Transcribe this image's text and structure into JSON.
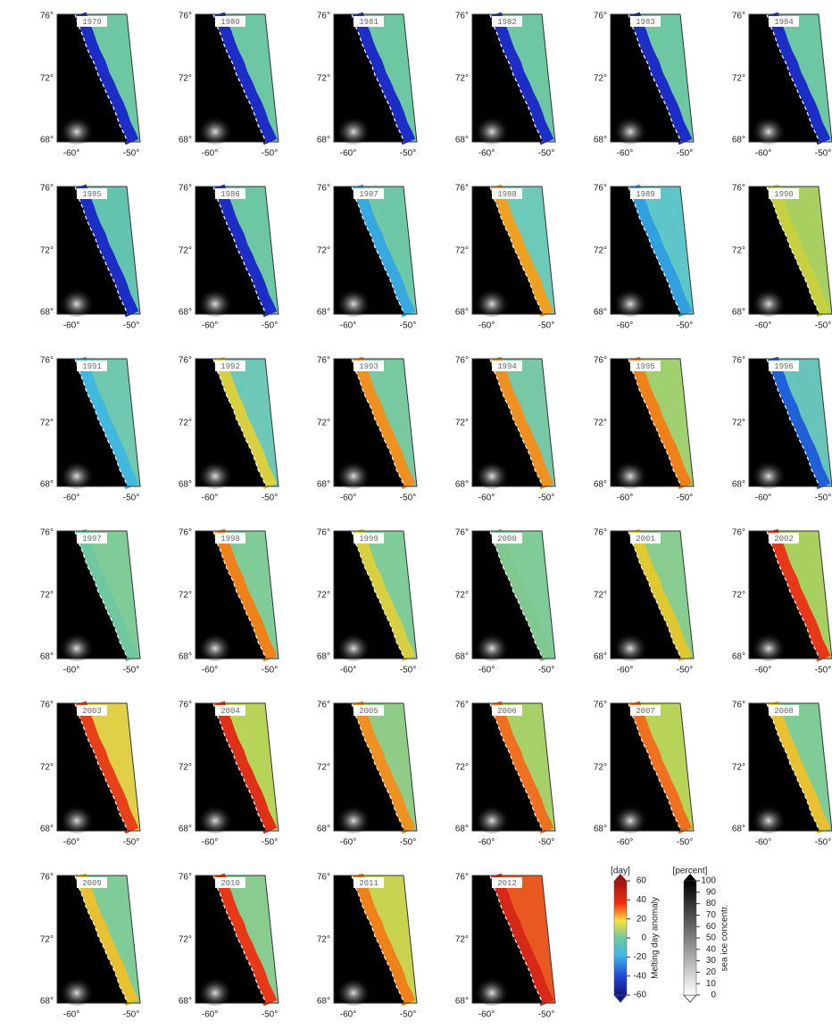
{
  "panels": [
    {
      "year": "1979",
      "coast": "#1d2ec8",
      "sea": "#6cc7a2"
    },
    {
      "year": "1980",
      "coast": "#1d2ec8",
      "sea": "#6cc7a2"
    },
    {
      "year": "1981",
      "coast": "#1d2ec8",
      "sea": "#6cc7a2"
    },
    {
      "year": "1982",
      "coast": "#1d2ec8",
      "sea": "#6cc7a2"
    },
    {
      "year": "1983",
      "coast": "#1d2ec8",
      "sea": "#6cc7a2"
    },
    {
      "year": "1984",
      "coast": "#1d2ec8",
      "sea": "#6cc7a2"
    },
    {
      "year": "1985",
      "coast": "#1d2ec8",
      "sea": "#62c4ae"
    },
    {
      "year": "1986",
      "coast": "#1d2ec8",
      "sea": "#6cc7a2"
    },
    {
      "year": "1987",
      "coast": "#38a8e0",
      "sea": "#6ec8a8"
    },
    {
      "year": "1988",
      "coast": "#f0a020",
      "sea": "#6ecab8"
    },
    {
      "year": "1989",
      "coast": "#30a0e0",
      "sea": "#5ec6c8"
    },
    {
      "year": "1990",
      "coast": "#c8d040",
      "sea": "#a8d060"
    },
    {
      "year": "1991",
      "coast": "#40b8e0",
      "sea": "#70c8b0"
    },
    {
      "year": "1992",
      "coast": "#d8d040",
      "sea": "#6ec8b8"
    },
    {
      "year": "1993",
      "coast": "#f09020",
      "sea": "#78c8a0"
    },
    {
      "year": "1994",
      "coast": "#f09020",
      "sea": "#78c8a8"
    },
    {
      "year": "1995",
      "coast": "#f08018",
      "sea": "#a0d070"
    },
    {
      "year": "1996",
      "coast": "#2060d8",
      "sea": "#68c4b8"
    },
    {
      "year": "1997",
      "coast": "#70c8a0",
      "sea": "#80cc98"
    },
    {
      "year": "1998",
      "coast": "#f08018",
      "sea": "#80cc98"
    },
    {
      "year": "1999",
      "coast": "#d8d040",
      "sea": "#80cc98"
    },
    {
      "year": "2000",
      "coast": "#80c890",
      "sea": "#80cc98"
    },
    {
      "year": "2001",
      "coast": "#e0c830",
      "sea": "#88cc90"
    },
    {
      "year": "2002",
      "coast": "#e83818",
      "sea": "#a8d060"
    },
    {
      "year": "2003",
      "coast": "#e84018",
      "sea": "#e0d048"
    },
    {
      "year": "2004",
      "coast": "#e03018",
      "sea": "#b8d458"
    },
    {
      "year": "2005",
      "coast": "#f09020",
      "sea": "#90cc88"
    },
    {
      "year": "2006",
      "coast": "#f07020",
      "sea": "#a8d068"
    },
    {
      "year": "2007",
      "coast": "#f07020",
      "sea": "#b8d458"
    },
    {
      "year": "2008",
      "coast": "#e8c030",
      "sea": "#80cc98"
    },
    {
      "year": "2009",
      "coast": "#e8c030",
      "sea": "#80cc98"
    },
    {
      "year": "2010",
      "coast": "#e83818",
      "sea": "#88cc90"
    },
    {
      "year": "2011",
      "coast": "#f08018",
      "sea": "#c8d450"
    },
    {
      "year": "2012",
      "coast": "#d82818",
      "sea": "#e85820"
    }
  ],
  "lat_ticks": [
    "76°",
    "72°",
    "68°"
  ],
  "lon_ticks": [
    "-60°",
    "-50°"
  ],
  "legend": {
    "day": {
      "unit": "[day]",
      "ticks": [
        60,
        40,
        20,
        0,
        -20,
        -40,
        -60
      ],
      "label": "Melting day anomaly"
    },
    "ice": {
      "unit": "[percent]",
      "ticks": [
        100,
        90,
        80,
        70,
        60,
        50,
        40,
        30,
        20,
        10,
        0
      ],
      "label": "sea ice concentr."
    }
  }
}
